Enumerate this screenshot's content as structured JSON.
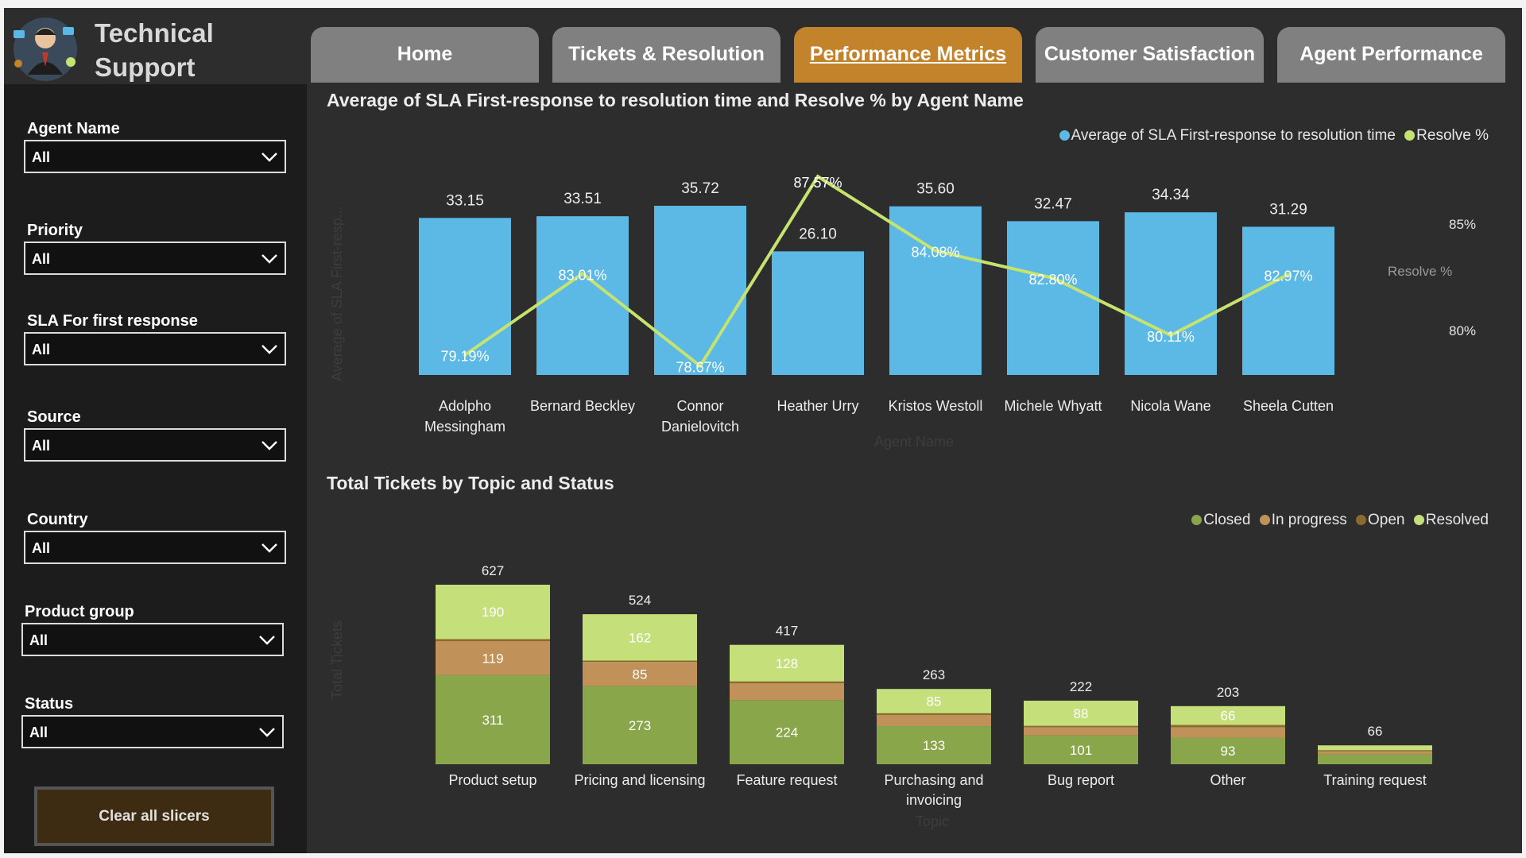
{
  "app": {
    "title_line1": "Technical",
    "title_line2": "Support"
  },
  "tabs": [
    {
      "label": "Home",
      "active": false
    },
    {
      "label": "Tickets & Resolution",
      "active": false
    },
    {
      "label": "Performance Metrics",
      "active": true
    },
    {
      "label": "Customer Satisfaction",
      "active": false
    },
    {
      "label": "Agent Performance",
      "active": false
    }
  ],
  "slicers": [
    {
      "label": "Agent Name",
      "value": "All"
    },
    {
      "label": "Priority",
      "value": "All"
    },
    {
      "label": "SLA For first response",
      "value": "All"
    },
    {
      "label": "Source",
      "value": "All"
    },
    {
      "label": "Country",
      "value": "All"
    },
    {
      "label": "Product group",
      "value": "All"
    },
    {
      "label": "Status",
      "value": "All"
    }
  ],
  "clear_button": "Clear all slicers",
  "colors": {
    "bar_blue": "#5cb8e4",
    "line_green": "#c5e36e",
    "closed": "#8aa64a",
    "in_progress": "#c0925a",
    "open": "#8a6a2e",
    "resolved": "#c5df7a",
    "accent_tab": "#c2832a"
  },
  "chart_data": [
    {
      "type": "bar+line",
      "title": "Average of SLA First-response to resolution time and Resolve % by Agent Name",
      "legend": [
        "Average of SLA First-response to resolution time",
        "Resolve %"
      ],
      "categories": [
        "Adolpho Messingham",
        "Bernard Beckley",
        "Connor Danielovitch",
        "Heather Urry",
        "Kristos Westoll",
        "Michele Whyatt",
        "Nicola Wane",
        "Sheela Cutten"
      ],
      "bar_labels": [
        "33.15",
        "33.51",
        "35.72",
        "26.10",
        "35.60",
        "32.47",
        "34.34",
        "31.29"
      ],
      "line_labels": [
        "79.19%",
        "83.01%",
        "78.67%",
        "87.57%",
        "84.08%",
        "82.80%",
        "80.11%",
        "82.97%"
      ],
      "bar_values": [
        33.15,
        33.51,
        35.72,
        26.1,
        35.6,
        32.47,
        34.34,
        31.29
      ],
      "line_values": [
        79.19,
        83.01,
        78.67,
        87.57,
        84.08,
        82.8,
        80.11,
        82.97
      ],
      "y2_ticks": [
        "85%",
        "80%"
      ],
      "y2_label": "Resolve %",
      "ylabel": "Average of SLA First-resp...",
      "xlabel": "Agent Name"
    },
    {
      "type": "stacked-bar",
      "title": "Total Tickets by Topic and Status",
      "legend": [
        "Closed",
        "In progress",
        "Open",
        "Resolved"
      ],
      "categories": [
        "Product setup",
        "Pricing and licensing",
        "Feature request",
        "Purchasing and invoicing",
        "Bug report",
        "Other",
        "Training request"
      ],
      "totals": [
        627,
        524,
        417,
        263,
        222,
        203,
        66
      ],
      "totals_text": [
        "627",
        "524",
        "417",
        "263",
        "222",
        "203",
        "66"
      ],
      "segment_values": {
        "Closed": [
          311,
          273,
          224,
          133,
          101,
          93,
          35
        ],
        "In progress": [
          119,
          85,
          59,
          39,
          29,
          37,
          11
        ],
        "Open": [
          7,
          4,
          6,
          6,
          4,
          7,
          3
        ],
        "Resolved": [
          190,
          162,
          128,
          85,
          88,
          66,
          17
        ]
      },
      "segment_labels": {
        "Closed": [
          "311",
          "273",
          "224",
          "133",
          "101",
          "93",
          ""
        ],
        "In progress": [
          "119",
          "85",
          "",
          "",
          "",
          "",
          ""
        ],
        "Open": [
          "",
          "",
          "",
          "",
          "",
          "",
          ""
        ],
        "Resolved": [
          "190",
          "162",
          "128",
          "85",
          "88",
          "66",
          ""
        ]
      },
      "ylabel": "Total Tickets",
      "xlabel": "Topic"
    }
  ]
}
